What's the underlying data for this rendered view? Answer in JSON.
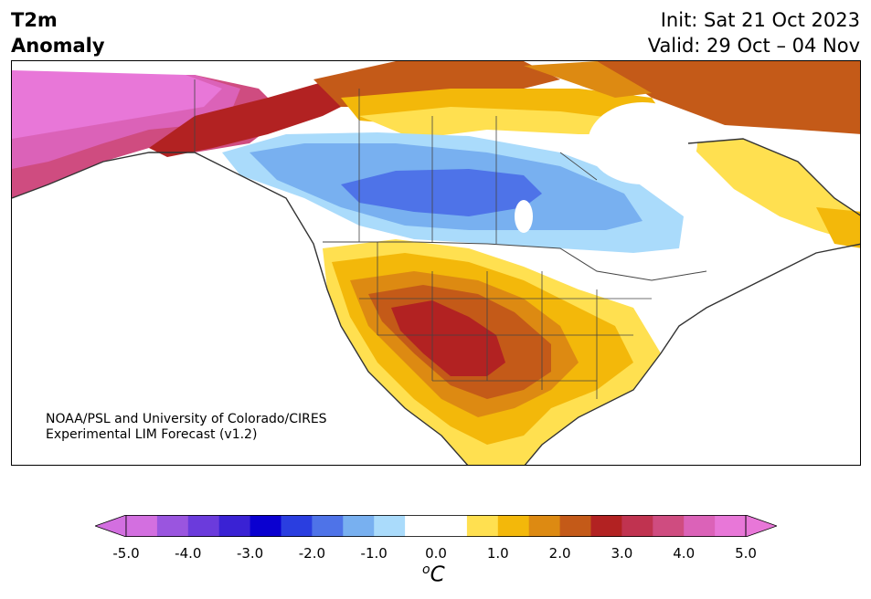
{
  "header": {
    "title_line1": "T2m",
    "title_line2": "Anomaly",
    "init": "Init: Sat 21 Oct 2023",
    "valid": "Valid: 29 Oct – 04 Nov"
  },
  "map": {
    "region": "North America",
    "credit_line1": "NOAA/PSL and University of Colorado/CIRES",
    "credit_line2": "Experimental LIM Forecast (v1.2)"
  },
  "colorbar": {
    "unit_base": "C",
    "unit_sup": "o",
    "ticks": [
      "-5.0",
      "-4.0",
      "-3.0",
      "-2.0",
      "-1.0",
      "0.0",
      "1.0",
      "2.0",
      "3.0",
      "4.0",
      "5.0"
    ],
    "colors": [
      "#d36fe0",
      "#9a55df",
      "#6b3bdc",
      "#3a22d4",
      "#0a00d0",
      "#2a3ee0",
      "#4e73e8",
      "#78b0f0",
      "#aadbfb",
      "#ffffff",
      "#ffffff",
      "#ffe050",
      "#f3b80a",
      "#dd8a12",
      "#c45a18",
      "#b22222",
      "#c03350",
      "#cf4c80",
      "#db62b8",
      "#e877d8"
    ]
  }
}
